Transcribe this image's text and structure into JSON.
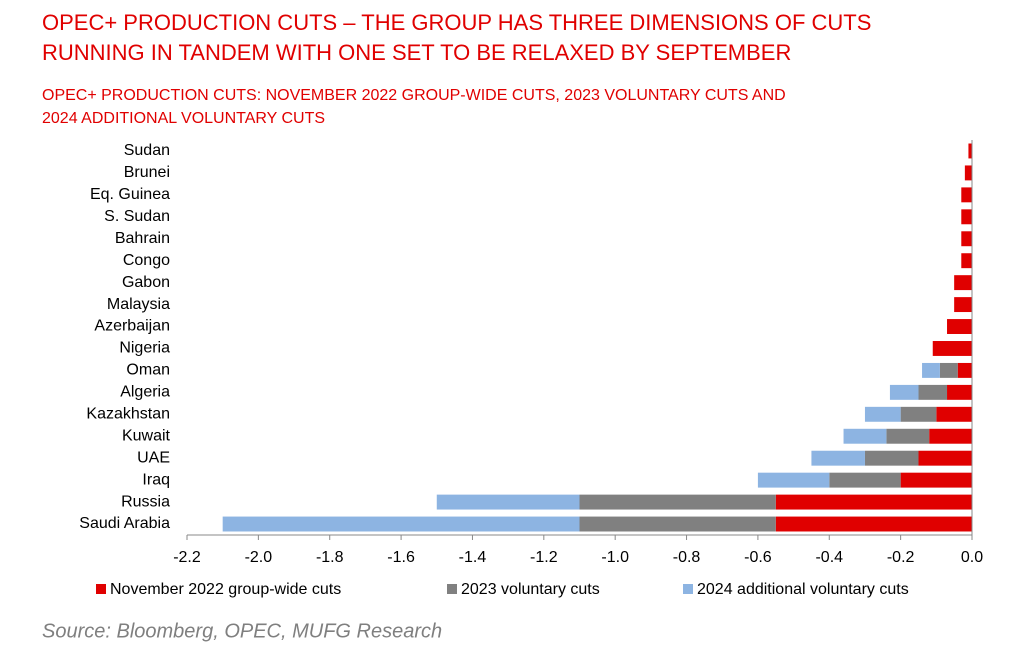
{
  "chart_data": {
    "type": "stacked-bar-horizontal",
    "title": [
      "OPEC+ PRODUCTION CUTS – THE GROUP HAS THREE DIMENSIONS OF CUTS",
      "RUNNING IN TANDEM WITH ONE SET TO BE RELAXED BY SEPTEMBER"
    ],
    "subtitle": [
      "OPEC+ PRODUCTION CUTS: NOVEMBER 2022 GROUP-WIDE CUTS, 2023 VOLUNTARY CUTS AND",
      "2024 ADDITIONAL VOLUNTARY CUTS"
    ],
    "categories": [
      "Sudan",
      "Brunei",
      "Eq. Guinea",
      "S. Sudan",
      "Bahrain",
      "Congo",
      "Gabon",
      "Malaysia",
      "Azerbaijan",
      "Nigeria",
      "Oman",
      "Algeria",
      "Kazakhstan",
      "Kuwait",
      "UAE",
      "Iraq",
      "Russia",
      "Saudi Arabia"
    ],
    "series": [
      {
        "name": "November 2022 group-wide cuts",
        "color": "#e00000",
        "values": [
          -0.01,
          -0.02,
          -0.03,
          -0.03,
          -0.03,
          -0.03,
          -0.05,
          -0.05,
          -0.07,
          -0.11,
          -0.04,
          -0.07,
          -0.1,
          -0.12,
          -0.15,
          -0.2,
          -0.55,
          -0.55
        ]
      },
      {
        "name": "2023 voluntary cuts",
        "color": "#808080",
        "values": [
          0,
          0,
          0,
          0,
          0,
          0,
          0,
          0,
          0,
          0,
          -0.05,
          -0.08,
          -0.1,
          -0.12,
          -0.15,
          -0.2,
          -0.55,
          -0.55
        ]
      },
      {
        "name": "2024 additional voluntary cuts",
        "color": "#8db4e2",
        "values": [
          0,
          0,
          0,
          0,
          0,
          0,
          0,
          0,
          0,
          0,
          -0.05,
          -0.08,
          -0.1,
          -0.12,
          -0.15,
          -0.2,
          -0.4,
          -1.0
        ]
      }
    ],
    "xlim": [
      -2.2,
      0
    ],
    "xticks": [
      -2.2,
      {
        "value": -2,
        "label": "-2.0"
      },
      -1.8,
      -1.6,
      -1.4,
      -1.2,
      {
        "value": -1,
        "label": "-1.0"
      },
      -0.8,
      -0.6,
      -0.4,
      -0.2,
      {
        "value": 0,
        "label": "0.0"
      }
    ],
    "source": "Source: Bloomberg, OPEC, MUFG Research"
  }
}
